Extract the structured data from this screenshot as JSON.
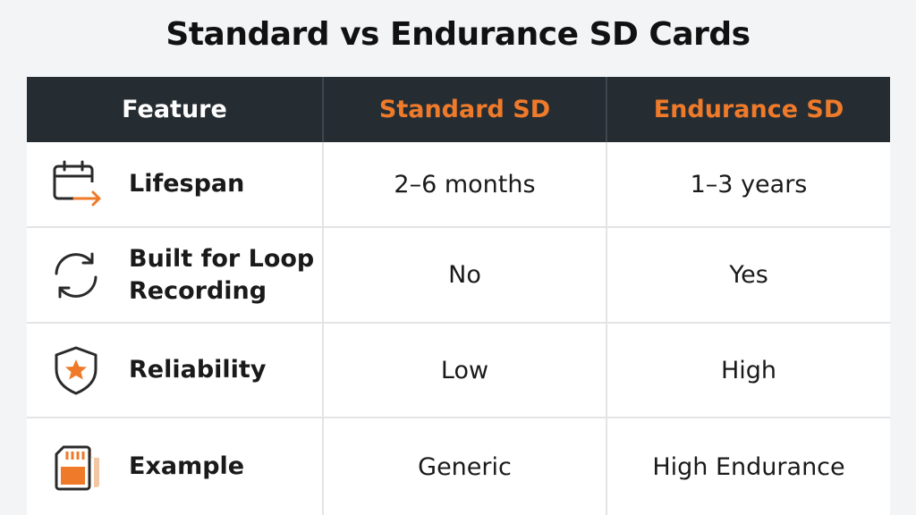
{
  "title": "Standard vs Endurance SD Cards",
  "header": {
    "feature": "Feature",
    "standard": "Standard SD",
    "endurance": "Endurance SD"
  },
  "rows": [
    {
      "icon": "calendar-arrow-icon",
      "feature": "Lifespan",
      "standard": "2–6 months",
      "endurance": "1–3 years"
    },
    {
      "icon": "loop-arrows-icon",
      "feature": "Built for Loop Recording",
      "standard": "No",
      "endurance": "Yes"
    },
    {
      "icon": "shield-star-icon",
      "feature": "Reliability",
      "standard": "Low",
      "endurance": "High"
    },
    {
      "icon": "sd-card-icon",
      "feature": "Example",
      "standard": "Generic",
      "endurance": "High Endurance"
    }
  ],
  "colors": {
    "accent": "#ef7a2a",
    "header_bg": "#252d33",
    "page_bg": "#f3f4f6",
    "text": "#1a1a1a"
  }
}
